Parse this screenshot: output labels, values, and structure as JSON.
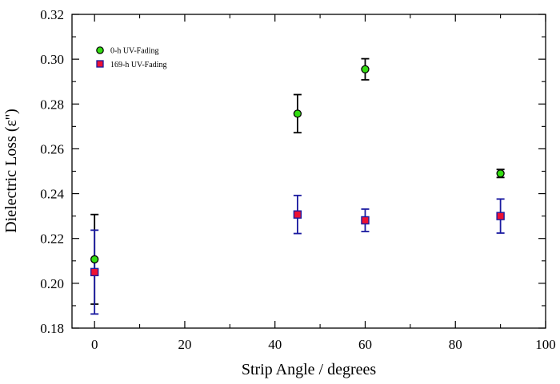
{
  "chart_data": {
    "type": "scatter",
    "title": "",
    "xlabel": "Strip Angle / degrees",
    "ylabel": "Dielectric Loss (ε'')",
    "xlim": [
      -5,
      100
    ],
    "ylim": [
      0.18,
      0.32
    ],
    "xticks": [
      0,
      20,
      40,
      60,
      80,
      100
    ],
    "xtick_labels": [
      "0",
      "20",
      "40",
      "60",
      "80",
      "100"
    ],
    "yticks": [
      0.18,
      0.2,
      0.22,
      0.24,
      0.26,
      0.28,
      0.3,
      0.32
    ],
    "ytick_labels": [
      "0.18",
      "0.20",
      "0.22",
      "0.24",
      "0.26",
      "0.28",
      "0.30",
      "0.32"
    ],
    "grid": false,
    "legend_position": "top-left",
    "series": [
      {
        "name": "0-h UV-Fading",
        "marker": "circle",
        "color": "#33dd11",
        "errorbar_color": "#000000",
        "points": [
          {
            "x": 0,
            "y": 0.2107,
            "err": 0.02
          },
          {
            "x": 45,
            "y": 0.2757,
            "err": 0.0085
          },
          {
            "x": 60,
            "y": 0.2955,
            "err": 0.0047
          },
          {
            "x": 90,
            "y": 0.249,
            "err": 0.0018
          }
        ]
      },
      {
        "name": "169-h UV-Fading",
        "marker": "square",
        "color": "#ee1133",
        "errorbar_color": "#1a1aa0",
        "points": [
          {
            "x": 0,
            "y": 0.205,
            "err": 0.0187
          },
          {
            "x": 45,
            "y": 0.2307,
            "err": 0.0085
          },
          {
            "x": 60,
            "y": 0.2281,
            "err": 0.005
          },
          {
            "x": 90,
            "y": 0.23,
            "err": 0.0076
          }
        ]
      }
    ]
  }
}
